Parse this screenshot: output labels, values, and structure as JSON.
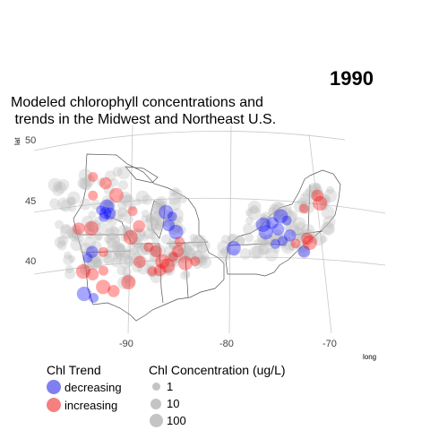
{
  "year_label": "1990",
  "title": "Modeled chlorophyll concentrations and\n trends in the Midwest and Northeast U.S.",
  "axes": {
    "x_label": "long",
    "y_label": "lat",
    "x_ticks": [
      "-90",
      "-80",
      "-70"
    ],
    "y_ticks": [
      "50",
      "45",
      "40"
    ]
  },
  "legend_trend": {
    "title": "Chl Trend",
    "items": [
      {
        "label": "decreasing",
        "color": "#7f7ff2"
      },
      {
        "label": "increasing",
        "color": "#f58080"
      }
    ]
  },
  "legend_concentration": {
    "title": "Chl Concentration (ug/L)",
    "items": [
      {
        "label": "1"
      },
      {
        "label": "10"
      },
      {
        "label": "100"
      }
    ]
  },
  "colors": {
    "decreasing": "#0000ff",
    "increasing": "#ff0000",
    "neutral": "#bdbdbd",
    "graticule": "#c8c8c8",
    "outline": "#555555"
  },
  "chart_data": {
    "type": "scatter",
    "x_axis": {
      "label": "long",
      "ticks": [
        -90,
        -80,
        -70
      ]
    },
    "y_axis": {
      "label": "lat",
      "ticks": [
        40,
        45,
        50
      ]
    },
    "series": [
      {
        "name": "decreasing",
        "points": [
          [
            -92.2,
            45.2
          ],
          [
            -91.8,
            44.9
          ],
          [
            -91.6,
            45.4
          ],
          [
            -92.0,
            44.6
          ],
          [
            -91.4,
            44.8
          ],
          [
            -86.0,
            44.3
          ],
          [
            -85.4,
            43.9
          ],
          [
            -85.8,
            43.2
          ],
          [
            -85.1,
            42.6
          ],
          [
            -94.0,
            41.6
          ],
          [
            -93.5,
            42.0
          ],
          [
            -94.8,
            38.8
          ],
          [
            -93.9,
            38.3
          ],
          [
            -75.6,
            43.3
          ],
          [
            -74.8,
            43.9
          ],
          [
            -74.2,
            43.6
          ],
          [
            -75.0,
            42.8
          ],
          [
            -76.2,
            42.5
          ],
          [
            -74.5,
            41.9
          ],
          [
            -73.8,
            42.4
          ],
          [
            -76.5,
            43.1
          ],
          [
            -75.2,
            41.6
          ],
          [
            -72.3,
            41.2
          ],
          [
            -79.4,
            41.1
          ]
        ]
      },
      {
        "name": "increasing",
        "points": [
          [
            -92.6,
            48.0
          ],
          [
            -91.5,
            47.3
          ],
          [
            -90.6,
            46.2
          ],
          [
            -92.8,
            46.5
          ],
          [
            -94.5,
            44.1
          ],
          [
            -93.3,
            43.9
          ],
          [
            -92.4,
            41.8
          ],
          [
            -93.7,
            40.2
          ],
          [
            -94.6,
            40.6
          ],
          [
            -92.6,
            40.3
          ],
          [
            -91.8,
            38.5
          ],
          [
            -92.8,
            39.0
          ],
          [
            -89.2,
            44.7
          ],
          [
            -88.7,
            43.4
          ],
          [
            -89.6,
            42.6
          ],
          [
            -87.9,
            41.6
          ],
          [
            -87.2,
            41.2
          ],
          [
            -86.6,
            40.3
          ],
          [
            -85.5,
            40.6
          ],
          [
            -86.9,
            39.6
          ],
          [
            -86.1,
            39.9
          ],
          [
            -87.7,
            39.6
          ],
          [
            -85.0,
            41.0
          ],
          [
            -84.3,
            40.0
          ],
          [
            -83.3,
            40.1
          ],
          [
            -88.9,
            40.5
          ],
          [
            -90.2,
            39.0
          ],
          [
            -84.8,
            41.8
          ],
          [
            -71.4,
            45.9
          ],
          [
            -71.1,
            45.3
          ],
          [
            -72.6,
            44.7
          ],
          [
            -72.1,
            42.3
          ],
          [
            -71.8,
            42.0
          ],
          [
            -73.2,
            41.8
          ]
        ]
      }
    ]
  }
}
